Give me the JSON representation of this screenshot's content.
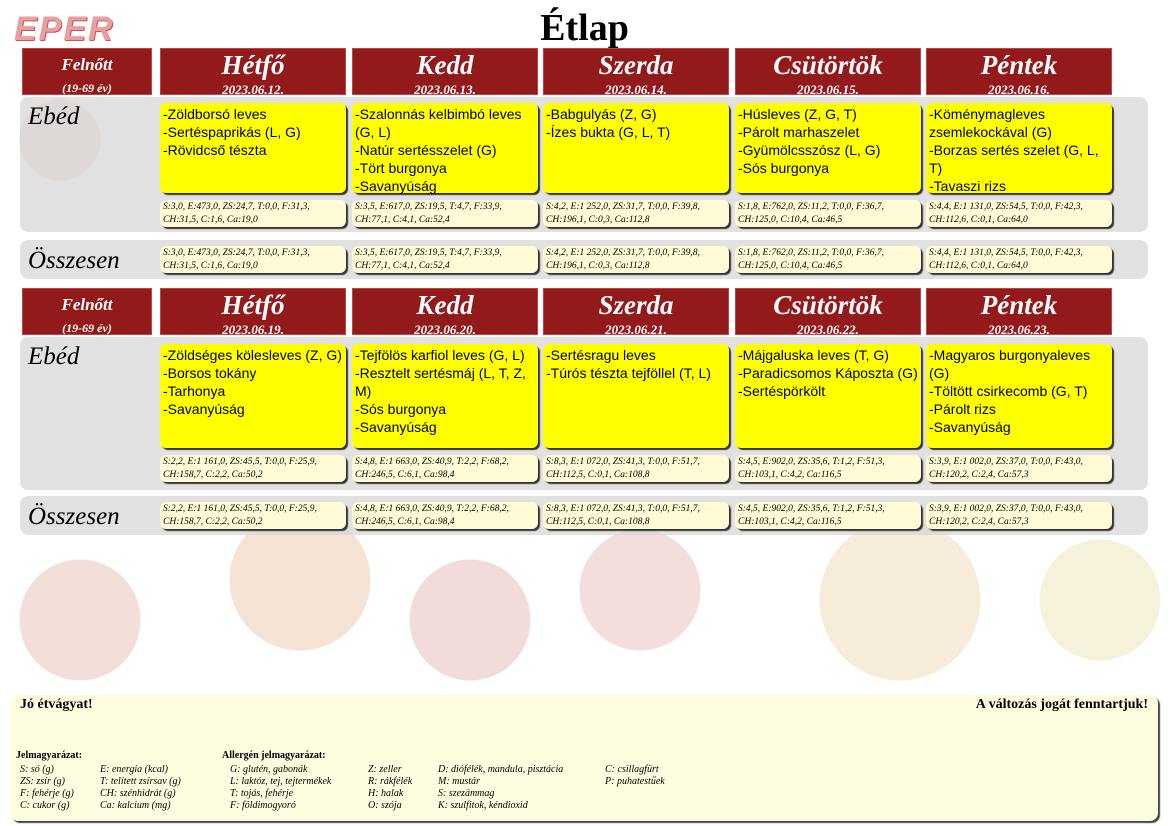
{
  "logo": "EPER",
  "title": "Étlap",
  "audience": {
    "label": "Felnőtt",
    "age": "(19-69 év)"
  },
  "row_labels": {
    "lunch": "Ebéd",
    "total": "Összesen"
  },
  "weeks": [
    {
      "days": [
        {
          "name": "Hétfő",
          "date": "2023.06.12.",
          "menu": [
            "-Zöldborsó leves",
            "-Sertéspaprikás (L, G)",
            "-Rövidcső tészta"
          ],
          "nutrition": [
            "S:3,0, E:473,0, ZS:24,7, T:0,0, F:31,3,",
            "CH:31,5, C:1,6, Ca:19,0"
          ],
          "total": [
            "S:3,0, E:473,0, ZS:24,7, T:0,0, F:31,3,",
            "CH:31,5, C:1,6, Ca:19,0"
          ]
        },
        {
          "name": "Kedd",
          "date": "2023.06.13.",
          "menu": [
            "-Szalonnás kelbimbó leves",
            "(G, L)",
            "-Natúr sertésszelet (G)",
            "-Tört burgonya",
            "-Savanyúság"
          ],
          "nutrition": [
            "S:3,5, E:617,0, ZS:19,5, T:4,7, F:33,9,",
            "CH:77,1, C:4,1, Ca:52,4"
          ],
          "total": [
            "S:3,5, E:617,0, ZS:19,5, T:4,7, F:33,9,",
            "CH:77,1, C:4,1, Ca:52,4"
          ]
        },
        {
          "name": "Szerda",
          "date": "2023.06.14.",
          "menu": [
            "-Babgulyás (Z, G)",
            "-Ízes bukta (G, L, T)"
          ],
          "nutrition": [
            "S:4,2, E:1 252,0, ZS:31,7, T:0,0, F:39,8,",
            "CH:196,1, C:0,3, Ca:112,8"
          ],
          "total": [
            "S:4,2, E:1 252,0, ZS:31,7, T:0,0, F:39,8,",
            "CH:196,1, C:0,3, Ca:112,8"
          ]
        },
        {
          "name": "Csütörtök",
          "date": "2023.06.15.",
          "menu": [
            "-Húsleves (Z, G, T)",
            "-Párolt marhaszelet",
            "-Gyümölcsszósz (L, G)",
            "-Sós burgonya"
          ],
          "nutrition": [
            "S:1,8, E:762,0, ZS:11,2, T:0,0, F:36,7,",
            "CH:125,0, C:10,4, Ca:46,5"
          ],
          "total": [
            "S:1,8, E:762,0, ZS:11,2, T:0,0, F:36,7,",
            "CH:125,0, C:10,4, Ca:46,5"
          ]
        },
        {
          "name": "Péntek",
          "date": "2023.06.16.",
          "menu": [
            "-Köménymagleves",
            "zsemlekockával (G)",
            "-Borzas sertés szelet (G, L, T)",
            "-Tavaszi rizs"
          ],
          "nutrition": [
            "S:4,4, E:1 131,0, ZS:54,5, T:0,0, F:42,3,",
            "CH:112,6, C:0,1, Ca:64,0"
          ],
          "total": [
            "S:4,4, E:1 131,0, ZS:54,5, T:0,0, F:42,3,",
            "CH:112,6, C:0,1, Ca:64,0"
          ]
        }
      ]
    },
    {
      "days": [
        {
          "name": "Hétfő",
          "date": "2023.06.19.",
          "menu": [
            "-Zöldséges kölesleves (Z, G)",
            "-Borsos tokány",
            "-Tarhonya",
            "-Savanyúság"
          ],
          "nutrition": [
            "S:2,2, E:1 161,0, ZS:45,5, T:0,0, F:25,9,",
            "CH:158,7, C:2,2, Ca:50,2"
          ],
          "total": [
            "S:2,2, E:1 161,0, ZS:45,5, T:0,0, F:25,9,",
            "CH:158,7, C:2,2, Ca:50,2"
          ]
        },
        {
          "name": "Kedd",
          "date": "2023.06.20.",
          "menu": [
            "-Tejfölös karfiol leves  (G, L)",
            "-Resztelt sertésmáj (L, T, Z,",
            "M)",
            "-Sós burgonya",
            "-Savanyúság"
          ],
          "nutrition": [
            "S:4,8, E:1 663,0, ZS:40,9, T:2,2, F:68,2,",
            "CH:246,5, C:6,1, Ca:98,4"
          ],
          "total": [
            "S:4,8, E:1 663,0, ZS:40,9, T:2,2, F:68,2,",
            "CH:246,5, C:6,1, Ca:98,4"
          ]
        },
        {
          "name": "Szerda",
          "date": "2023.06.21.",
          "menu": [
            "-Sertésragu leves",
            "-Túrós tészta tejföllel (T, L)"
          ],
          "nutrition": [
            "S:8,3, E:1 072,0, ZS:41,3, T:0,0, F:51,7,",
            "CH:112,5, C:0,1, Ca:108,8"
          ],
          "total": [
            "S:8,3, E:1 072,0, ZS:41,3, T:0,0, F:51,7,",
            "CH:112,5, C:0,1, Ca:108,8"
          ]
        },
        {
          "name": "Csütörtök",
          "date": "2023.06.22.",
          "menu": [
            "-Májgaluska leves (T, G)",
            "-Paradicsomos Káposzta (G)",
            "-Sertéspörkölt"
          ],
          "nutrition": [
            "S:4,5, E:902,0, ZS:35,6, T:1,2, F:51,3,",
            "CH:103,1, C:4,2, Ca:116,5"
          ],
          "total": [
            "S:4,5, E:902,0, ZS:35,6, T:1,2, F:51,3,",
            "CH:103,1, C:4,2, Ca:116,5"
          ]
        },
        {
          "name": "Péntek",
          "date": "2023.06.23.",
          "menu": [
            "-Magyaros burgonyaleves (G)",
            "-Töltött csirkecomb (G, T)",
            "-Párolt rizs",
            "-Savanyúság"
          ],
          "nutrition": [
            "S:3,9, E:1 002,0, ZS:37,0, T:0,0, F:43,0,",
            "CH:120,2, C:2,4, Ca:57,3"
          ],
          "total": [
            "S:3,9, E:1 002,0, ZS:37,0, T:0,0, F:43,0,",
            "CH:120,2, C:2,4, Ca:57,3"
          ]
        }
      ]
    }
  ],
  "footer": {
    "greeting": "Jó étvágyat!",
    "notice": "A változás jogát fenntartjuk!",
    "legend_title": "Jelmagyarázat:",
    "legend_cols": [
      [
        "S: só (g)",
        "ZS: zsír (g)",
        "F: fehérje (g)",
        "C: cukor (g)"
      ],
      [
        "E: energia (kcal)",
        "T: telített zsírsav (g)",
        "CH: szénhidrát (g)",
        "Ca: kalcium (mg)"
      ]
    ],
    "allergen_title": "Allergén jelmagyarázat:",
    "allergen_cols": [
      [
        "G: glutén, gabonák",
        "L: laktóz, tej, tejtermékek",
        "T: tojás, fehérje",
        "F: földimogyoró"
      ],
      [
        "Z: zeller",
        "R: rákfélék",
        "H: halak",
        "O: szója"
      ],
      [
        "D: diófélék, mandula, pisztácia",
        "M: mustár",
        "S: szezámmag",
        "K: szulfitok, kéndioxid"
      ],
      [
        "C: csillagfürt",
        "P: puhatestűek"
      ]
    ]
  },
  "colors": {
    "header": "#931a1a",
    "menu": "#ffff00",
    "nutrition": "#fffbd6"
  }
}
